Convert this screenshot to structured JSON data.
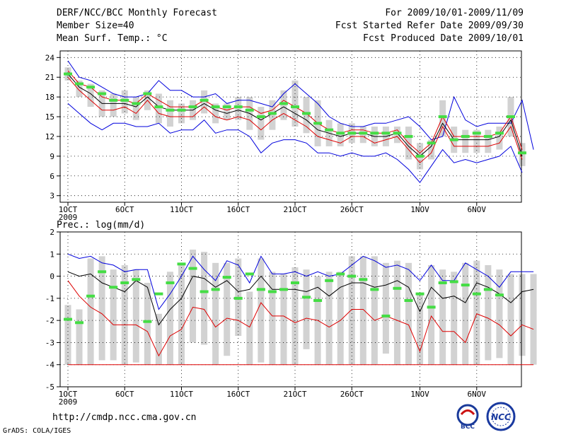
{
  "header": {
    "title": "DERF/NCC/BCC Monthly Forecast",
    "member": "Member Size=40",
    "variable": "Mean Surf. Temp.: °C",
    "period": "For 2009/10/01-2009/11/09",
    "fcst_started": "Fcst Started Refer Date 2009/09/30",
    "fcst_produced": "Fcst Produced Date 2009/10/01"
  },
  "footer": {
    "url": "http://cmdp.ncc.cma.gov.cn",
    "grads": "GrADS: COLA/IGES",
    "logo_bcc": "BCC",
    "logo_ncc": "NCC"
  },
  "colors": {
    "box": "#d2d2d2",
    "max": "#0000dd",
    "min": "#dd0000",
    "mean": "#000000",
    "obs": "#44dd44"
  },
  "chart_data": [
    {
      "type": "line",
      "title": "Mean Surf. Temp.: °C",
      "x_ticks": [
        "1OCT",
        "6OCT",
        "11OCT",
        "16OCT",
        "21OCT",
        "26OCT",
        "1NOV",
        "6NOV"
      ],
      "x_sublabel": "2009",
      "ylim": [
        2,
        25
      ],
      "y_ticks": [
        3,
        6,
        9,
        12,
        15,
        18,
        21,
        24
      ],
      "grid": true,
      "series": [
        {
          "name": "max",
          "values": [
            23.5,
            21.0,
            20.5,
            19.5,
            18.5,
            18.0,
            18.0,
            18.5,
            20.5,
            19.0,
            19.0,
            18.0,
            18.0,
            18.5,
            17.0,
            17.5,
            17.5,
            17.0,
            16.5,
            18.5,
            20.0,
            18.5,
            17.0,
            15.0,
            14.0,
            13.5,
            13.5,
            14.0,
            14.0,
            14.5,
            15.0,
            13.5,
            11.5,
            12.0,
            18.0,
            14.5,
            13.5,
            14.0,
            14.0,
            14.0,
            17.5,
            10.0
          ]
        },
        {
          "name": "upper",
          "values": [
            22.0,
            20.0,
            19.5,
            18.0,
            17.5,
            17.5,
            17.0,
            18.5,
            17.5,
            16.5,
            16.5,
            16.5,
            17.5,
            16.5,
            16.0,
            16.5,
            16.5,
            15.5,
            16.0,
            17.5,
            16.5,
            15.5,
            14.0,
            13.0,
            12.5,
            13.0,
            13.0,
            12.5,
            12.5,
            13.0,
            11.0,
            9.5,
            11.0,
            15.0,
            12.0,
            12.0,
            12.0,
            12.0,
            12.5,
            15.0,
            10.0
          ]
        },
        {
          "name": "mean",
          "values": [
            21.5,
            19.5,
            18.5,
            17.0,
            17.0,
            17.0,
            16.5,
            18.0,
            16.5,
            16.0,
            16.0,
            16.0,
            17.0,
            16.0,
            15.5,
            16.0,
            15.5,
            14.5,
            15.5,
            16.5,
            15.5,
            14.5,
            13.0,
            12.5,
            12.0,
            12.5,
            12.5,
            12.0,
            12.0,
            12.5,
            10.5,
            9.0,
            10.5,
            14.0,
            11.5,
            11.5,
            11.5,
            11.5,
            12.0,
            14.5,
            9.0
          ]
        },
        {
          "name": "lower",
          "values": [
            21.0,
            19.0,
            17.5,
            16.0,
            16.0,
            16.5,
            15.5,
            17.5,
            15.5,
            15.0,
            15.0,
            15.0,
            16.5,
            15.0,
            14.5,
            15.0,
            14.5,
            13.0,
            14.5,
            15.5,
            14.5,
            13.5,
            12.0,
            11.5,
            11.0,
            12.0,
            12.0,
            11.0,
            11.5,
            12.0,
            10.0,
            8.0,
            9.5,
            13.5,
            10.5,
            10.5,
            10.5,
            10.5,
            11.0,
            13.5,
            8.5
          ]
        },
        {
          "name": "min",
          "values": [
            17.0,
            15.5,
            14.0,
            13.0,
            14.0,
            14.0,
            13.5,
            13.5,
            14.0,
            12.5,
            13.0,
            13.0,
            14.5,
            12.5,
            13.0,
            13.0,
            12.0,
            9.5,
            11.0,
            11.5,
            11.5,
            11.0,
            9.5,
            9.5,
            9.0,
            9.5,
            9.0,
            9.0,
            9.5,
            8.5,
            7.0,
            5.0,
            7.5,
            10.0,
            8.0,
            8.5,
            8.0,
            8.5,
            9.0,
            10.5,
            6.5
          ]
        },
        {
          "name": "obs",
          "values": [
            21.5,
            20.0,
            19.5,
            18.5,
            17.5,
            17.5,
            17.0,
            18.5,
            16.5,
            16.0,
            16.0,
            16.5,
            17.5,
            16.5,
            16.5,
            16.5,
            16.0,
            15.0,
            15.5,
            17.0,
            16.5,
            15.5,
            14.0,
            13.0,
            12.5,
            12.5,
            12.5,
            12.5,
            12.5,
            12.5,
            12.0,
            9.0,
            11.0,
            15.0,
            11.5,
            12.0,
            12.5,
            12.0,
            12.5,
            15.0,
            9.5
          ]
        },
        {
          "name": "box_hi",
          "values": [
            22.5,
            20.5,
            20.0,
            19.0,
            18.5,
            19.0,
            18.0,
            19.0,
            18.5,
            17.5,
            17.0,
            17.5,
            19.0,
            17.0,
            17.0,
            18.0,
            18.0,
            16.5,
            17.5,
            19.0,
            20.5,
            18.0,
            17.5,
            14.5,
            14.0,
            14.0,
            13.5,
            13.5,
            13.5,
            13.5,
            13.5,
            11.0,
            11.5,
            17.5,
            13.5,
            13.0,
            13.0,
            13.0,
            13.5,
            18.0,
            11.0
          ]
        },
        {
          "name": "box_lo",
          "values": [
            20.5,
            18.0,
            16.5,
            15.0,
            15.0,
            15.5,
            14.5,
            16.0,
            14.0,
            13.5,
            14.0,
            14.5,
            15.5,
            14.0,
            14.5,
            14.5,
            13.0,
            11.5,
            13.0,
            14.5,
            13.5,
            12.5,
            10.5,
            10.5,
            10.5,
            11.0,
            11.0,
            10.5,
            10.5,
            11.0,
            8.5,
            7.0,
            8.5,
            12.0,
            9.5,
            9.5,
            9.5,
            9.5,
            10.0,
            12.0,
            7.5
          ]
        }
      ]
    },
    {
      "type": "line",
      "title": "Prec.: log(mm/d)",
      "x_ticks": [
        "1OCT",
        "6OCT",
        "11OCT",
        "16OCT",
        "21OCT",
        "26OCT",
        "1NOV",
        "6NOV"
      ],
      "x_sublabel": "2009",
      "ylim": [
        -5,
        2
      ],
      "y_ticks": [
        -5,
        -4,
        -3,
        -2,
        -1,
        0,
        1,
        2
      ],
      "grid": true,
      "series": [
        {
          "name": "max",
          "values": [
            1.0,
            0.8,
            0.9,
            0.6,
            0.5,
            0.2,
            0.3,
            0.3,
            -1.5,
            -0.8,
            0.0,
            0.9,
            0.3,
            -0.2,
            0.7,
            0.5,
            -0.3,
            0.9,
            0.1,
            0.1,
            0.2,
            0.0,
            0.2,
            0.0,
            0.1,
            0.5,
            0.9,
            0.7,
            0.4,
            0.5,
            0.3,
            -0.2,
            0.5,
            -0.2,
            -0.2,
            0.6,
            0.3,
            0.0,
            -0.5,
            0.2,
            0.2,
            0.2
          ]
        },
        {
          "name": "mean",
          "values": [
            0.2,
            0.0,
            0.1,
            -0.3,
            -0.5,
            -0.7,
            -0.2,
            -0.5,
            -2.2,
            -1.5,
            -1.0,
            0.0,
            -0.1,
            -0.5,
            -0.2,
            -0.7,
            -0.6,
            0.0,
            -0.6,
            -0.6,
            -0.6,
            -0.7,
            -0.5,
            -0.9,
            -0.5,
            -0.3,
            -0.3,
            -0.5,
            -0.4,
            -0.2,
            -0.5,
            -1.6,
            -0.5,
            -1.0,
            -0.9,
            -1.2,
            -0.3,
            -0.5,
            -0.8,
            -1.2,
            -0.7,
            -0.6
          ]
        },
        {
          "name": "min",
          "values": [
            -0.2,
            -0.9,
            -1.4,
            -1.7,
            -2.2,
            -2.2,
            -2.2,
            -2.5,
            -3.6,
            -2.7,
            -2.4,
            -1.4,
            -1.5,
            -2.3,
            -1.9,
            -2.0,
            -2.3,
            -1.2,
            -1.8,
            -1.8,
            -2.1,
            -1.9,
            -2.0,
            -2.3,
            -2.0,
            -1.5,
            -1.5,
            -2.0,
            -1.8,
            -2.0,
            -2.2,
            -3.4,
            -1.8,
            -2.5,
            -2.5,
            -3.0,
            -1.7,
            -1.9,
            -2.2,
            -2.7,
            -2.2,
            -2.4
          ]
        },
        {
          "name": "floor",
          "values": [
            -4.0,
            -4.0,
            -4.0,
            -4.0,
            -4.0,
            -4.0,
            -4.0,
            -4.0,
            -4.0,
            -4.0,
            -4.0,
            -4.0,
            -4.0,
            -4.0,
            -4.0,
            -4.0,
            -4.0,
            -4.0,
            -4.0,
            -4.0,
            -4.0,
            -4.0,
            -4.0,
            -4.0,
            -4.0,
            -4.0,
            -4.0,
            -4.0,
            -4.0,
            -4.0,
            -4.0,
            -4.0,
            -4.0,
            -4.0,
            -4.0,
            -4.0,
            -4.0,
            -4.0,
            -4.0,
            -4.0,
            -4.0,
            -4.0
          ]
        },
        {
          "name": "obs",
          "values": [
            -1.95,
            -2.1,
            -0.9,
            0.2,
            -0.5,
            -0.3,
            -0.15,
            -2.05,
            -0.8,
            -0.3,
            0.55,
            0.35,
            -0.7,
            -0.6,
            -0.05,
            -1.0,
            0.1,
            -0.6,
            -0.7,
            -0.6,
            -0.3,
            -0.95,
            -1.1,
            -0.2,
            0.1,
            0.0,
            -0.15,
            -0.6,
            -1.8,
            -0.55,
            -1.1,
            -0.8,
            -1.4,
            -0.3,
            -0.25,
            -0.4,
            -0.8,
            -0.6,
            -0.85
          ]
        },
        {
          "name": "box_hi",
          "values": [
            -1.3,
            -1.5,
            0.8,
            0.9,
            0.3,
            0.5,
            0.3,
            -0.3,
            -1.7,
            0.2,
            0.5,
            1.2,
            1.1,
            0.6,
            0.6,
            0.8,
            -0.7,
            0.8,
            0.2,
            0.1,
            0.4,
            0.3,
            0.0,
            0.2,
            0.2,
            0.9,
            0.9,
            0.9,
            0.6,
            0.7,
            0.6,
            -0.8,
            0.5,
            0.3,
            0.2,
            0.6,
            0.7,
            0.5,
            0.3,
            0.1,
            0.1,
            0.1
          ]
        },
        {
          "name": "box_lo",
          "values": [
            -4.0,
            -4.0,
            -4.0,
            -3.8,
            -3.8,
            -4.0,
            -3.9,
            -4.0,
            -4.0,
            -4.0,
            -4.0,
            -3.0,
            -3.1,
            -4.0,
            -3.6,
            -2.7,
            -4.0,
            -3.9,
            -4.0,
            -4.0,
            -4.0,
            -3.3,
            -4.0,
            -4.0,
            -4.0,
            -4.0,
            -4.0,
            -4.0,
            -3.5,
            -4.0,
            -4.0,
            -4.0,
            -4.0,
            -4.0,
            -4.0,
            -4.0,
            -4.0,
            -3.8,
            -3.7,
            -4.0,
            -3.6,
            -4.0
          ]
        }
      ]
    }
  ]
}
